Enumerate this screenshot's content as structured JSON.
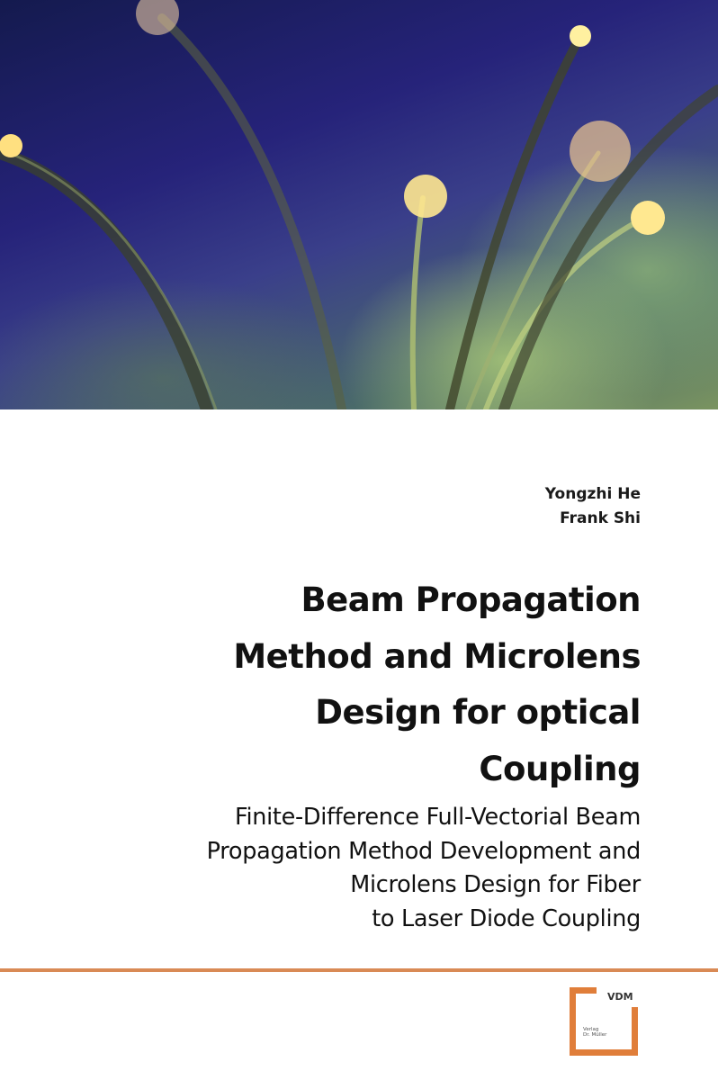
{
  "cover": {
    "authors": [
      "Yongzhi He",
      "Frank Shi"
    ],
    "title_lines": [
      "Beam Propagation",
      "Method and Microlens",
      "Design for optical",
      "Coupling"
    ],
    "subtitle_lines": [
      "Finite-Difference Full-Vectorial Beam",
      "Propagation Method Development and",
      "Microlens Design for Fiber",
      "to Laser Diode Coupling"
    ],
    "publisher_logo": {
      "name": "VDM",
      "sub_lines": [
        "Verlag",
        "Dr. Müller"
      ]
    },
    "colors": {
      "accent": "#e07e3a",
      "rule": "#d98a55",
      "text": "#111111"
    }
  }
}
